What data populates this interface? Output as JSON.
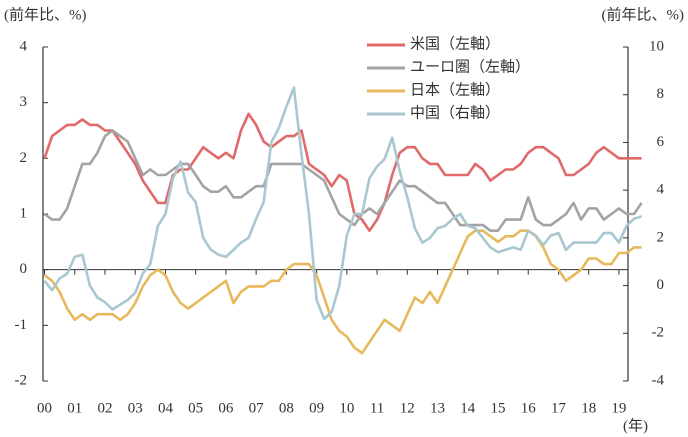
{
  "chart_data": {
    "type": "line",
    "left_axis_label": "(前年比、%)",
    "right_axis_label": "(前年比、%)",
    "x_unit_label": "(年)",
    "x": [
      2000,
      2000.25,
      2000.5,
      2000.75,
      2001,
      2001.25,
      2001.5,
      2001.75,
      2002,
      2002.25,
      2002.5,
      2002.75,
      2003,
      2003.25,
      2003.5,
      2003.75,
      2004,
      2004.25,
      2004.5,
      2004.75,
      2005,
      2005.25,
      2005.5,
      2005.75,
      2006,
      2006.25,
      2006.5,
      2006.75,
      2007,
      2007.25,
      2007.5,
      2007.75,
      2008,
      2008.25,
      2008.5,
      2008.75,
      2009,
      2009.25,
      2009.5,
      2009.75,
      2010,
      2010.25,
      2010.5,
      2010.75,
      2011,
      2011.25,
      2011.5,
      2011.75,
      2012,
      2012.25,
      2012.5,
      2012.75,
      2013,
      2013.25,
      2013.5,
      2013.75,
      2014,
      2014.25,
      2014.5,
      2014.75,
      2015,
      2015.25,
      2015.5,
      2015.75,
      2016,
      2016.25,
      2016.5,
      2016.75,
      2017,
      2017.25,
      2017.5,
      2017.75,
      2018,
      2018.25,
      2018.5,
      2018.75,
      2019,
      2019.25,
      2019.5,
      2019.75
    ],
    "series": [
      {
        "name": "米国（左軸）",
        "color": "#e06a6a",
        "values": [
          2.0,
          2.4,
          2.5,
          2.6,
          2.6,
          2.7,
          2.6,
          2.6,
          2.5,
          2.5,
          2.3,
          2.1,
          1.9,
          1.6,
          1.4,
          1.2,
          1.2,
          1.7,
          1.8,
          1.8,
          2.0,
          2.2,
          2.1,
          2.0,
          2.1,
          2.0,
          2.5,
          2.8,
          2.6,
          2.3,
          2.2,
          2.3,
          2.4,
          2.4,
          2.5,
          1.9,
          1.8,
          1.7,
          1.5,
          1.7,
          1.6,
          1.0,
          0.9,
          0.7,
          0.9,
          1.2,
          1.7,
          2.1,
          2.2,
          2.2,
          2.0,
          1.9,
          1.9,
          1.7,
          1.7,
          1.7,
          1.7,
          1.9,
          1.8,
          1.6,
          1.7,
          1.8,
          1.8,
          1.9,
          2.1,
          2.2,
          2.2,
          2.1,
          2.0,
          1.7,
          1.7,
          1.8,
          1.9,
          2.1,
          2.2,
          2.1,
          2.0,
          2.0,
          2.0,
          2.0
        ]
      },
      {
        "name": "ユーロ圏（左軸）",
        "color": "#a3a3a3",
        "values": [
          1.0,
          0.9,
          0.9,
          1.1,
          1.5,
          1.9,
          1.9,
          2.1,
          2.4,
          2.5,
          2.4,
          2.3,
          2.0,
          1.7,
          1.8,
          1.7,
          1.7,
          1.8,
          1.9,
          1.9,
          1.7,
          1.5,
          1.4,
          1.4,
          1.5,
          1.3,
          1.3,
          1.4,
          1.5,
          1.5,
          1.9,
          1.9,
          1.9,
          1.9,
          1.9,
          1.8,
          1.7,
          1.6,
          1.3,
          1.0,
          0.9,
          0.8,
          1.0,
          1.1,
          1.0,
          1.2,
          1.4,
          1.6,
          1.5,
          1.5,
          1.4,
          1.3,
          1.2,
          1.2,
          1.0,
          0.8,
          0.8,
          0.8,
          0.8,
          0.7,
          0.7,
          0.9,
          0.9,
          0.9,
          1.3,
          0.9,
          0.8,
          0.8,
          0.9,
          1.0,
          1.2,
          0.9,
          1.1,
          1.1,
          0.9,
          1.0,
          1.1,
          1.0,
          1.0,
          1.2
        ]
      },
      {
        "name": "日本（左軸）",
        "color": "#e8b95c",
        "values": [
          -0.1,
          -0.2,
          -0.4,
          -0.7,
          -0.9,
          -0.8,
          -0.9,
          -0.8,
          -0.8,
          -0.8,
          -0.9,
          -0.8,
          -0.6,
          -0.3,
          -0.1,
          0.0,
          -0.1,
          -0.4,
          -0.6,
          -0.7,
          -0.6,
          -0.5,
          -0.4,
          -0.3,
          -0.2,
          -0.6,
          -0.4,
          -0.3,
          -0.3,
          -0.3,
          -0.2,
          -0.2,
          0.0,
          0.1,
          0.1,
          0.1,
          -0.1,
          -0.5,
          -0.9,
          -1.1,
          -1.2,
          -1.4,
          -1.5,
          -1.3,
          -1.1,
          -0.9,
          -1.0,
          -1.1,
          -0.8,
          -0.5,
          -0.6,
          -0.4,
          -0.6,
          -0.3,
          0.0,
          0.3,
          0.6,
          0.7,
          0.7,
          0.6,
          0.5,
          0.6,
          0.6,
          0.7,
          0.7,
          0.6,
          0.4,
          0.1,
          0.0,
          -0.2,
          -0.1,
          0.0,
          0.2,
          0.2,
          0.1,
          0.1,
          0.3,
          0.3,
          0.4,
          0.4
        ]
      },
      {
        "name": "中国（右軸）",
        "color": "#a9c7d0",
        "axis": "y2",
        "values": [
          0.2,
          -0.2,
          0.3,
          0.5,
          1.2,
          1.3,
          0.0,
          -0.5,
          -0.7,
          -1.0,
          -0.8,
          -0.6,
          -0.3,
          0.5,
          0.9,
          2.5,
          3.0,
          4.5,
          5.2,
          3.9,
          3.5,
          2.0,
          1.5,
          1.3,
          1.2,
          1.5,
          1.8,
          2.0,
          2.8,
          3.5,
          6.0,
          6.6,
          7.5,
          8.3,
          5.5,
          3.0,
          -0.6,
          -1.4,
          -1.1,
          0.0,
          2.1,
          3.0,
          3.0,
          4.5,
          5.0,
          5.3,
          6.2,
          4.8,
          3.7,
          2.4,
          1.8,
          2.0,
          2.4,
          2.5,
          2.8,
          3.0,
          2.5,
          2.4,
          2.0,
          1.6,
          1.4,
          1.5,
          1.6,
          1.5,
          2.3,
          2.1,
          1.7,
          2.1,
          2.2,
          1.5,
          1.8,
          1.8,
          1.8,
          1.8,
          2.2,
          2.2,
          1.8,
          2.5,
          2.8,
          2.9
        ]
      }
    ],
    "xlim": [
      1999.95,
      2019.3
    ],
    "xticks": [
      {
        "value": 2000,
        "label": "00"
      },
      {
        "value": 2001,
        "label": "01"
      },
      {
        "value": 2002,
        "label": "02"
      },
      {
        "value": 2003,
        "label": "03"
      },
      {
        "value": 2004,
        "label": "04"
      },
      {
        "value": 2005,
        "label": "05"
      },
      {
        "value": 2006,
        "label": "06"
      },
      {
        "value": 2007,
        "label": "07"
      },
      {
        "value": 2008,
        "label": "08"
      },
      {
        "value": 2009,
        "label": "09"
      },
      {
        "value": 2010,
        "label": "10"
      },
      {
        "value": 2011,
        "label": "11"
      },
      {
        "value": 2012,
        "label": "12"
      },
      {
        "value": 2013,
        "label": "13"
      },
      {
        "value": 2014,
        "label": "14"
      },
      {
        "value": 2015,
        "label": "15"
      },
      {
        "value": 2016,
        "label": "16"
      },
      {
        "value": 2017,
        "label": "17"
      },
      {
        "value": 2018,
        "label": "18"
      },
      {
        "value": 2019,
        "label": "19"
      }
    ],
    "ylim": [
      -2,
      4
    ],
    "yticks": [
      -2,
      -1,
      0,
      1,
      2,
      3,
      4
    ],
    "y2lim": [
      -4,
      10
    ],
    "y2ticks": [
      -4,
      -2,
      0,
      2,
      4,
      6,
      8,
      10
    ],
    "legend": "upper right"
  }
}
